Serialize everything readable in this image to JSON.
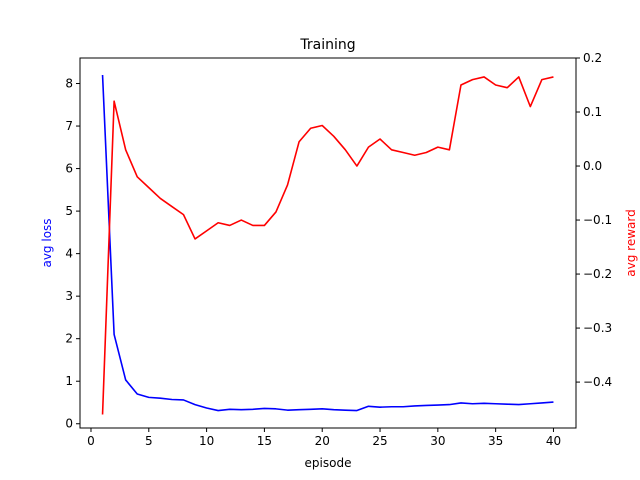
{
  "chart_data": {
    "type": "line",
    "title": "Training",
    "xlabel": "episode",
    "ylabel_left": "avg loss",
    "ylabel_right": "avg reward",
    "xlim": [
      -0.95,
      41.95
    ],
    "ylim_left": [
      -0.1,
      8.6
    ],
    "ylim_right": [
      -0.485,
      0.2
    ],
    "xticks": [
      0,
      5,
      10,
      15,
      20,
      25,
      30,
      35,
      40
    ],
    "yticks_left": [
      0,
      1,
      2,
      3,
      4,
      5,
      6,
      7,
      8
    ],
    "yticks_right": [
      -0.4,
      -0.3,
      -0.2,
      -0.1,
      0.0,
      0.1,
      0.2
    ],
    "yticks_right_labels": [
      "−0.4",
      "−0.3",
      "−0.2",
      "−0.1",
      "0.0",
      "0.1",
      "0.2"
    ],
    "colors": {
      "loss": "#0000ff",
      "reward": "#ff0000"
    },
    "grid": false,
    "series": [
      {
        "axis": "left",
        "color": "#0000ff",
        "x": [
          1,
          2,
          3,
          4,
          5,
          6,
          7,
          8,
          9,
          10,
          11,
          12,
          13,
          14,
          15,
          16,
          17,
          18,
          19,
          20,
          21,
          22,
          23,
          24,
          25,
          26,
          27,
          28,
          29,
          30,
          31,
          32,
          33,
          34,
          35,
          36,
          37,
          38,
          39,
          40
        ],
        "values": [
          8.2,
          2.1,
          1.03,
          0.7,
          0.62,
          0.6,
          0.57,
          0.56,
          0.45,
          0.37,
          0.31,
          0.34,
          0.33,
          0.34,
          0.36,
          0.35,
          0.32,
          0.33,
          0.34,
          0.35,
          0.33,
          0.32,
          0.31,
          0.41,
          0.39,
          0.4,
          0.4,
          0.42,
          0.43,
          0.44,
          0.45,
          0.49,
          0.47,
          0.48,
          0.47,
          0.46,
          0.45,
          0.47,
          0.49,
          0.51
        ]
      },
      {
        "axis": "right",
        "color": "#ff0000",
        "x": [
          1,
          2,
          3,
          4,
          5,
          6,
          7,
          8,
          9,
          10,
          11,
          12,
          13,
          14,
          15,
          16,
          17,
          18,
          19,
          20,
          21,
          22,
          23,
          24,
          25,
          26,
          27,
          28,
          29,
          30,
          31,
          32,
          33,
          34,
          35,
          36,
          37,
          38,
          39,
          40
        ],
        "values": [
          -0.46,
          0.12,
          0.03,
          -0.02,
          -0.04,
          -0.06,
          -0.075,
          -0.09,
          -0.135,
          -0.12,
          -0.105,
          -0.11,
          -0.1,
          -0.11,
          -0.11,
          -0.085,
          -0.035,
          0.045,
          0.07,
          0.075,
          0.055,
          0.03,
          0.0,
          0.035,
          0.05,
          0.03,
          0.025,
          0.02,
          0.025,
          0.035,
          0.03,
          0.15,
          0.16,
          0.165,
          0.15,
          0.145,
          0.165,
          0.11,
          0.16,
          0.165
        ]
      }
    ]
  }
}
